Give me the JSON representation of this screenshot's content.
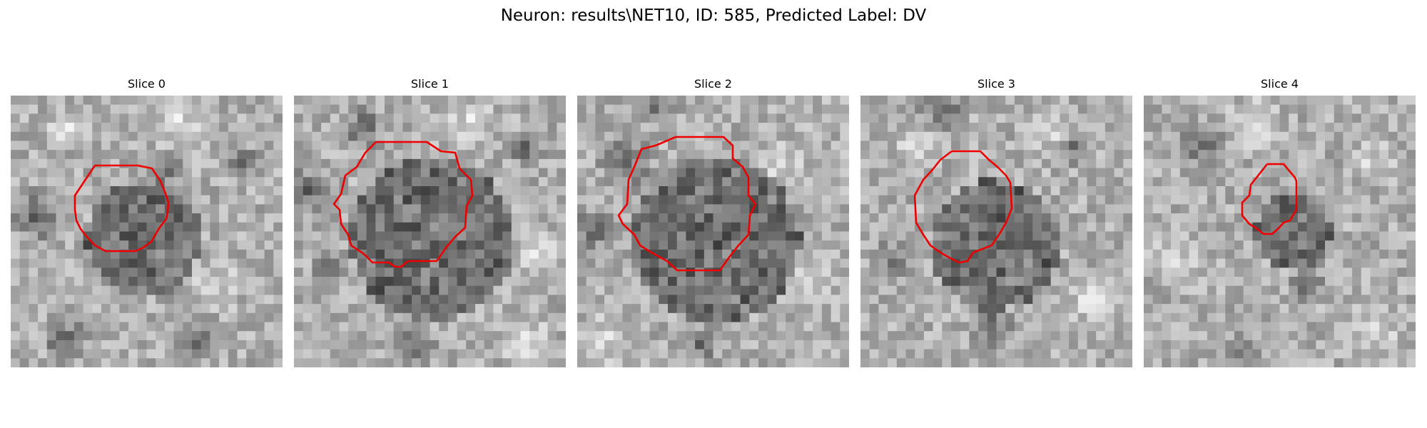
{
  "figure": {
    "title": "Neuron: results\\NET10, ID: 585, Predicted Label: DV"
  },
  "panels": [
    {
      "title": "Slice 0",
      "contour_color": "#ee0000"
    },
    {
      "title": "Slice 1",
      "contour_color": "#ee0000"
    },
    {
      "title": "Slice 2",
      "contour_color": "#ee0000"
    },
    {
      "title": "Slice 3",
      "contour_color": "#ee0000"
    },
    {
      "title": "Slice 4",
      "contour_color": "#ee0000"
    }
  ]
}
